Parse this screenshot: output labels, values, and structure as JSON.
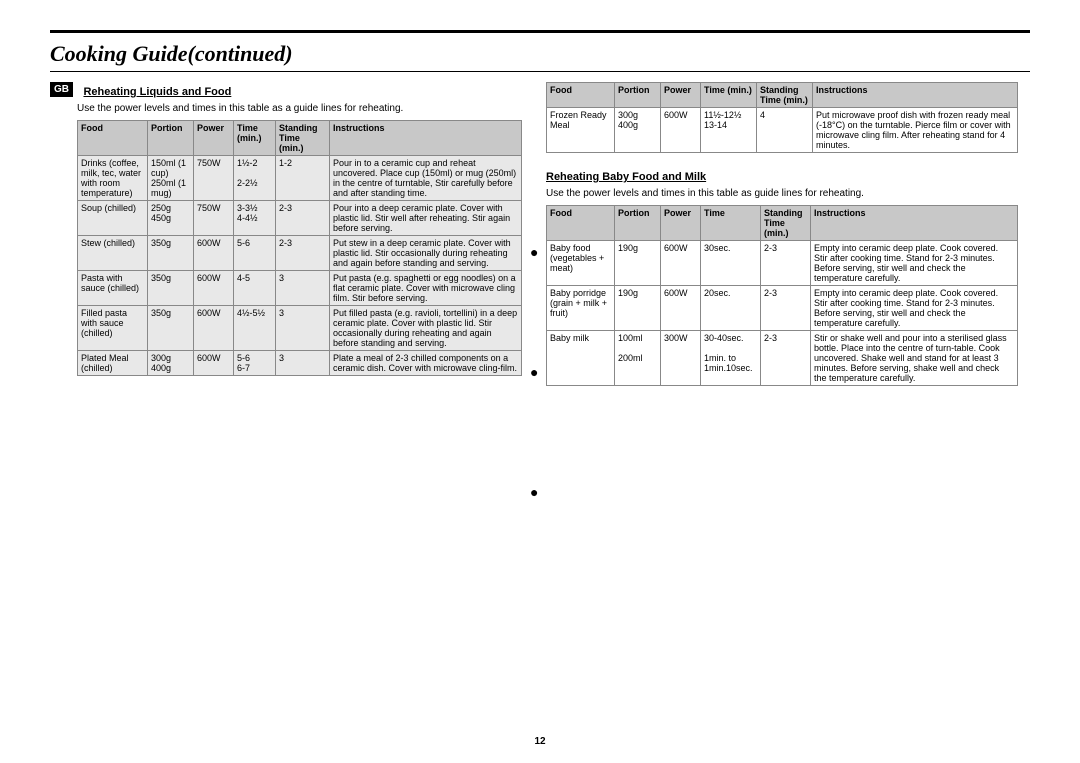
{
  "page_title": "Cooking Guide(continued)",
  "gb_badge": "GB",
  "page_number": "12",
  "section1": {
    "title": "Reheating Liquids and Food",
    "note": "Use the power levels and times in this table as a guide lines for reheating.",
    "headers": [
      "Food",
      "Portion",
      "Power",
      "Time (min.)",
      "Standing Time (min.)",
      "Instructions"
    ],
    "rows": [
      {
        "food": "Drinks (coffee, milk, tec, water with room temperature)",
        "portion": "150ml (1 cup) 250ml (1 mug)",
        "power": "750W",
        "time": "1½-2\n\n2-2½",
        "standing": "1-2",
        "instr": "Pour in to a ceramic cup and reheat uncovered. Place cup (150ml) or mug (250ml) in the centre of turntable, Stir carefully before and after standing time."
      },
      {
        "food": "Soup (chilled)",
        "portion": "250g 450g",
        "power": "750W",
        "time": "3-3½\n4-4½",
        "standing": "2-3",
        "instr": "Pour into a deep ceramic plate. Cover with plastic lid. Stir well after reheating. Stir again before serving."
      },
      {
        "food": "Stew (chilled)",
        "portion": "350g",
        "power": "600W",
        "time": "5-6",
        "standing": "2-3",
        "instr": "Put stew in a deep ceramic plate. Cover with plastic lid. Stir occasionally during reheating and again before standing and serving."
      },
      {
        "food": "Pasta with sauce (chilled)",
        "portion": "350g",
        "power": "600W",
        "time": "4-5",
        "standing": "3",
        "instr": "Put pasta (e.g. spaghetti or egg noodles) on a flat ceramic plate. Cover with microwave cling film. Stir before serving."
      },
      {
        "food": "Filled pasta with sauce (chilled)",
        "portion": "350g",
        "power": "600W",
        "time": "4½-5½",
        "standing": "3",
        "instr": "Put filled pasta (e.g. ravioli, tortellini) in a deep ceramic plate. Cover with plastic lid. Stir occasionally during reheating and again before standing and serving."
      },
      {
        "food": "Plated Meal (chilled)",
        "portion": "300g 400g",
        "power": "600W",
        "time": "5-6\n6-7",
        "standing": "3",
        "instr": "Plate a meal of 2-3 chilled components on a ceramic dish. Cover with microwave cling-film."
      }
    ]
  },
  "section2": {
    "headers": [
      "Food",
      "Portion",
      "Power",
      "Time (min.)",
      "Standing Time (min.)",
      "Instructions"
    ],
    "rows": [
      {
        "food": "Frozen Ready Meal",
        "portion": "300g 400g",
        "power": "600W",
        "time": "11½-12½\n13-14",
        "standing": "4",
        "instr": "Put microwave proof dish with frozen ready meal (-18°C) on the turntable. Pierce film or cover with microwave cling film. After reheating stand for 4 minutes."
      }
    ]
  },
  "section3": {
    "title": "Reheating Baby Food and Milk",
    "note": "Use the power levels and times in this table as guide lines for reheating.",
    "headers": [
      "Food",
      "Portion",
      "Power",
      "Time",
      "Standing Time (min.)",
      "Instructions"
    ],
    "rows": [
      {
        "food": "Baby food (vegetables + meat)",
        "portion": "190g",
        "power": "600W",
        "time": "30sec.",
        "standing": "2-3",
        "instr": "Empty into ceramic deep plate. Cook covered. Stir after cooking time. Stand for 2-3 minutes. Before serving, stir well and check the temperature carefully."
      },
      {
        "food": "Baby porridge (grain + milk + fruit)",
        "portion": "190g",
        "power": "600W",
        "time": "20sec.",
        "standing": "2-3",
        "instr": "Empty into ceramic deep plate. Cook covered. Stir after cooking time. Stand for 2-3 minutes. Before serving, stir well and check the temperature carefully."
      },
      {
        "food": "Baby milk",
        "portion": "100ml\n\n200ml",
        "power": "300W",
        "time": "30-40sec.\n\n1min. to 1min.10sec.",
        "standing": "2-3",
        "instr": "Stir or shake well and pour into a sterilised glass bottle. Place into the centre of turn-table. Cook uncovered. Shake well and stand for at least 3 minutes. Before serving, shake well and check the temperature carefully."
      }
    ]
  }
}
